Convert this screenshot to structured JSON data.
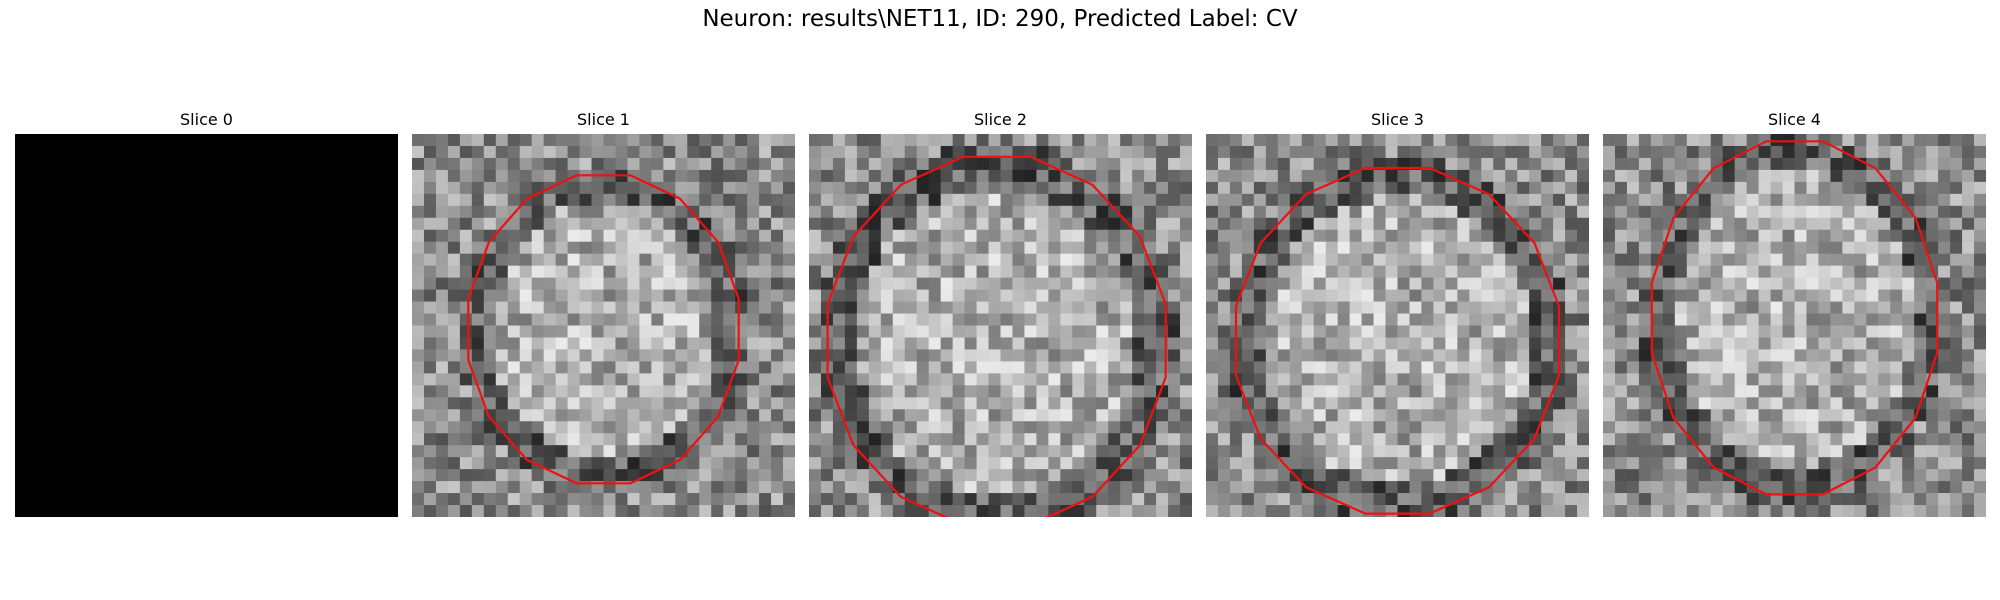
{
  "figure": {
    "suptitle": "Neuron: results\\NET11, ID: 290, Predicted Label: CV"
  },
  "panels": [
    {
      "title": "Slice 0",
      "image": "blank-black-slice",
      "seed": 1,
      "contour": null
    },
    {
      "title": "Slice 1",
      "image": "grayscale-em-slice",
      "seed": 11,
      "contour": {
        "color": "#ee1111",
        "center": [
          0.5,
          0.51
        ],
        "radius": [
          0.36,
          0.41
        ]
      }
    },
    {
      "title": "Slice 2",
      "image": "grayscale-em-slice",
      "seed": 22,
      "contour": {
        "color": "#ee1111",
        "center": [
          0.49,
          0.54
        ],
        "radius": [
          0.45,
          0.49
        ]
      }
    },
    {
      "title": "Slice 3",
      "image": "grayscale-em-slice",
      "seed": 33,
      "contour": {
        "color": "#ee1111",
        "center": [
          0.5,
          0.54
        ],
        "radius": [
          0.43,
          0.46
        ]
      }
    },
    {
      "title": "Slice 4",
      "image": "grayscale-em-slice",
      "seed": 44,
      "contour": {
        "color": "#ee1111",
        "center": [
          0.5,
          0.48
        ],
        "radius": [
          0.38,
          0.47
        ]
      }
    }
  ]
}
